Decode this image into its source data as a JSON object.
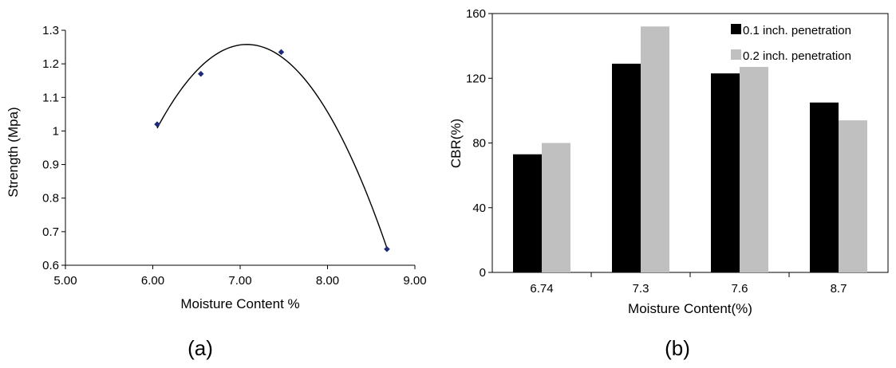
{
  "chart_data": [
    {
      "type": "scatter",
      "panel_label": "(a)",
      "title": "",
      "xlabel": "Moisture Content %",
      "ylabel": "Strength (Mpa)",
      "xlim": [
        5.0,
        9.0
      ],
      "ylim": [
        0.6,
        1.3
      ],
      "xticks": [
        "5.00",
        "6.00",
        "7.00",
        "8.00",
        "9.00"
      ],
      "yticks": [
        "0.6",
        "0.7",
        "0.8",
        "0.9",
        "1",
        "1.1",
        "1.2",
        "1.3"
      ],
      "grid": false,
      "marker_color": "#1f2a7a",
      "points": [
        {
          "x": 6.05,
          "y": 1.02
        },
        {
          "x": 6.55,
          "y": 1.17
        },
        {
          "x": 7.47,
          "y": 1.235
        },
        {
          "x": 8.68,
          "y": 0.648
        }
      ],
      "trendline": "polynomial"
    },
    {
      "type": "bar",
      "panel_label": "(b)",
      "title": "",
      "xlabel": "Moisture Content(%)",
      "ylabel": "CBR(%)",
      "ylim": [
        0,
        160
      ],
      "yticks": [
        "0",
        "40",
        "80",
        "120",
        "160"
      ],
      "categories": [
        "6.74",
        "7.3",
        "7.6",
        "8.7"
      ],
      "series": [
        {
          "name": "0.1 inch. penetration",
          "color": "#000000",
          "values": [
            73,
            129,
            123,
            105
          ]
        },
        {
          "name": "0.2 inch. penetration",
          "color": "#c0c0c0",
          "values": [
            80,
            152,
            127,
            94
          ]
        }
      ],
      "legend": "top-right",
      "grid": false
    }
  ]
}
